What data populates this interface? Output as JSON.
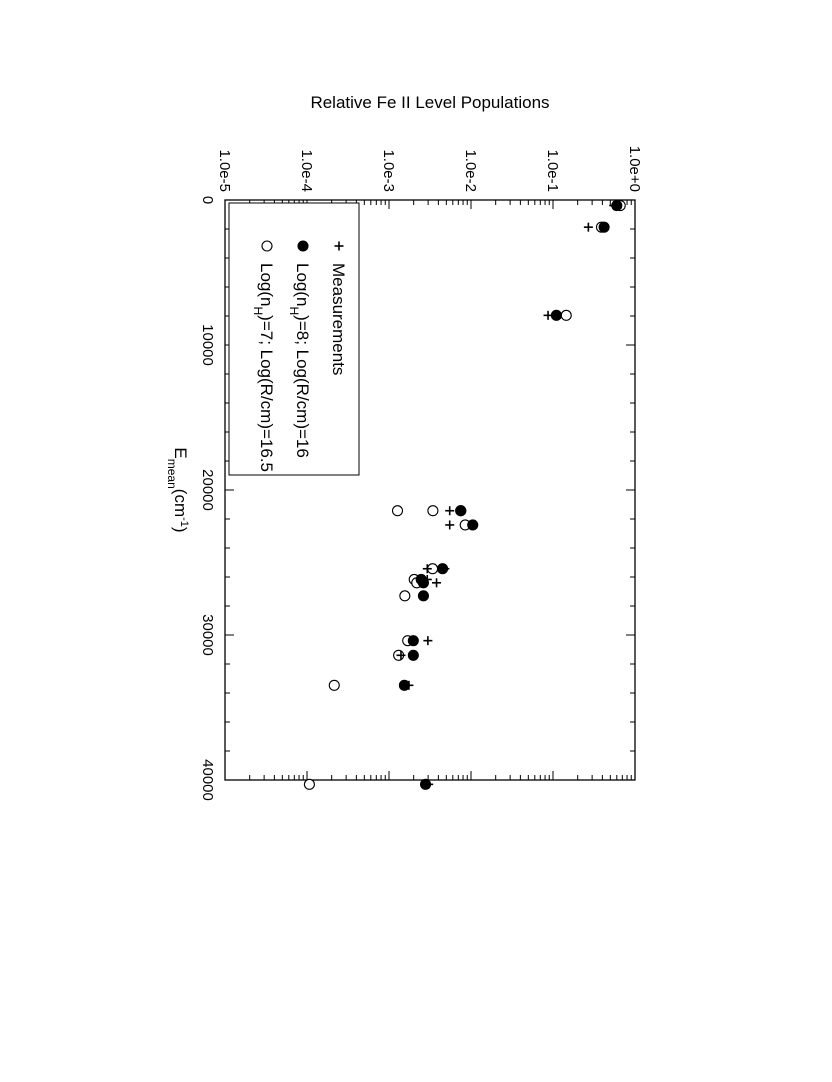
{
  "chart_data": {
    "type": "scatter",
    "orientation": "rotated-90-clockwise",
    "xlabel": "E",
    "xlabel_sub": "mean",
    "xlabel_unit_prefix": "(cm",
    "xlabel_unit_sup": "-1",
    "xlabel_unit_suffix": ")",
    "ylabel": "Relative Fe II Level Populations",
    "x_range": [
      0,
      40000
    ],
    "x_ticks": [
      "0",
      "10000",
      "20000",
      "30000",
      "40000"
    ],
    "x_tick_values": [
      0,
      10000,
      20000,
      30000,
      40000
    ],
    "y_scale": "log",
    "y_range": [
      1e-05,
      1
    ],
    "y_ticks": [
      "1.0e+0",
      "1.0e-1",
      "1.0e-2",
      "1.0e-3",
      "1.0e-4",
      "1.0e-5"
    ],
    "y_tick_values": [
      1,
      0.1,
      0.01,
      0.001,
      0.0001,
      1e-05
    ],
    "grid": false,
    "legend_position": "lower-left",
    "legend": {
      "measurements": "Measurements",
      "model1_prefix": "Log(n",
      "model1_sub": "H",
      "model1_suffix": ")=8; Log(R/cm)=16",
      "model2_prefix": "Log(n",
      "model2_sub": "H",
      "model2_suffix": ")=7; Log(R/cm)=16.5"
    },
    "series": [
      {
        "marker": "plus",
        "x": [
          385,
          385,
          1873,
          7955,
          21430,
          22410,
          25430,
          25430,
          26170,
          26400,
          27300,
          30390,
          31400,
          33470,
          40300
        ],
        "y": [
          0.55,
          0.58,
          0.27,
          0.087,
          0.0055,
          0.0055,
          0.0048,
          0.00293,
          0.00293,
          0.0038,
          0.00263,
          0.00298,
          0.0014,
          0.00175,
          0.00305
        ]
      },
      {
        "marker": "filled-circle",
        "x": [
          385,
          1873,
          7955,
          21430,
          21430,
          22410,
          25430,
          26170,
          26400,
          27300,
          30390,
          31400,
          33470,
          40300
        ],
        "y": [
          0.6,
          0.42,
          0.11,
          0.0075,
          0.0075,
          0.0105,
          0.0045,
          0.00247,
          0.00263,
          0.00263,
          0.00198,
          0.00198,
          0.00154,
          0.00279
        ]
      },
      {
        "marker": "open-circle",
        "x": [
          385,
          1873,
          7955,
          21430,
          21430,
          22410,
          25430,
          26170,
          26400,
          27300,
          30390,
          31400,
          33470,
          40300
        ],
        "y": [
          0.66,
          0.39,
          0.145,
          0.00343,
          0.00127,
          0.0085,
          0.0034,
          0.00203,
          0.00218,
          0.00156,
          0.00169,
          0.00131,
          0.000215,
          0.000107
        ]
      }
    ]
  }
}
